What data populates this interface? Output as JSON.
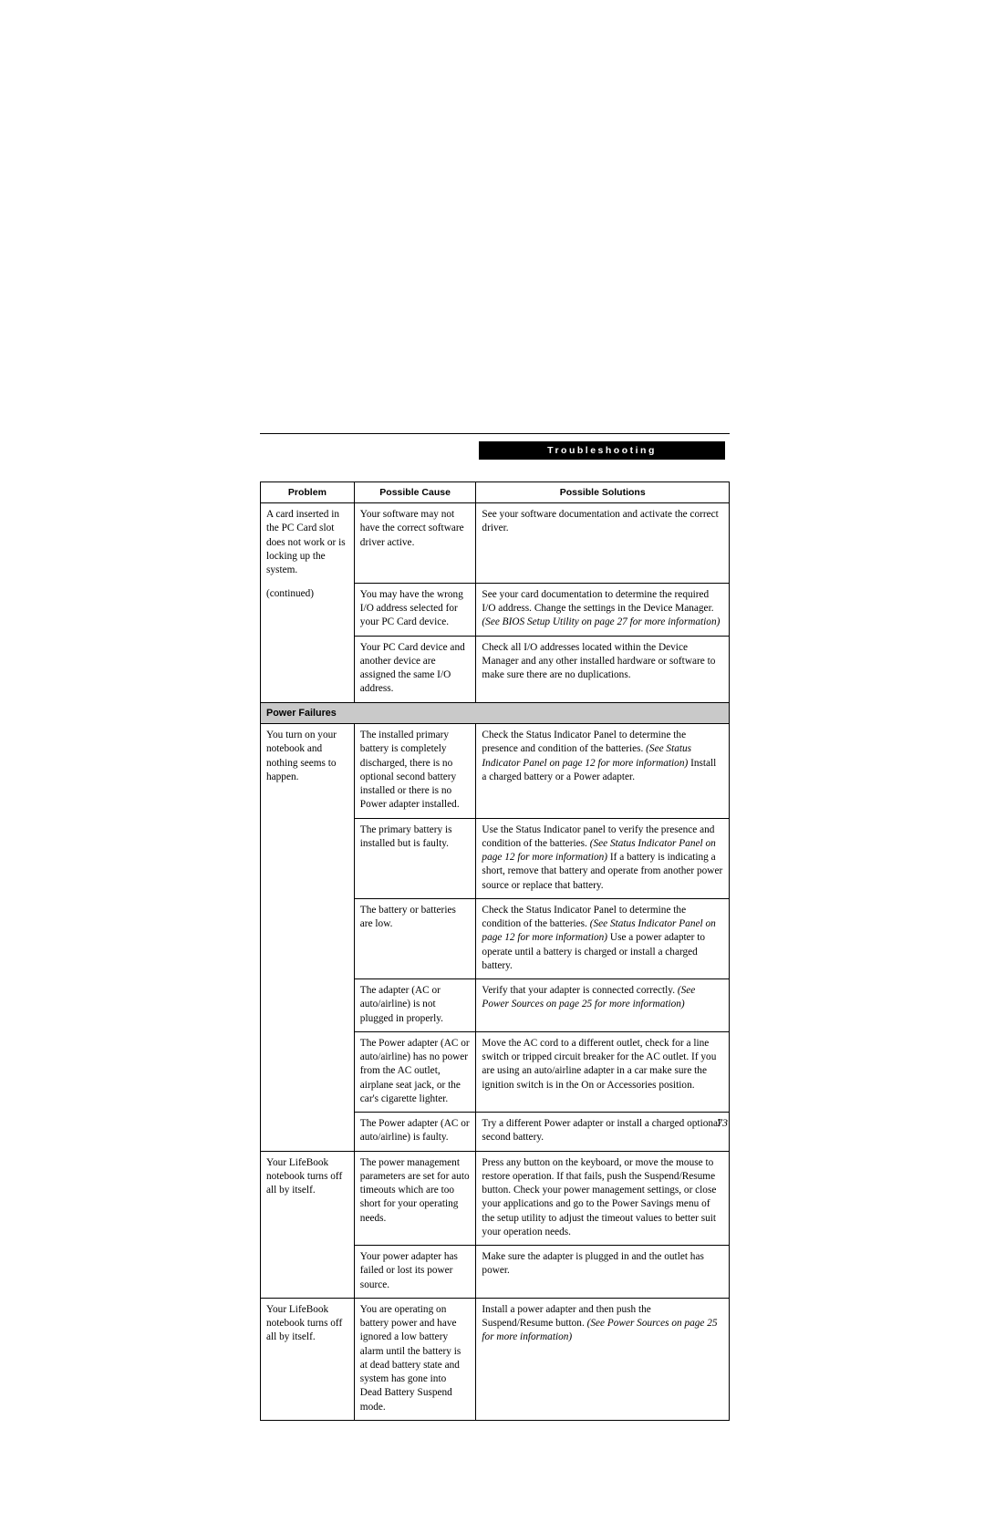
{
  "section_title": "Troubleshooting",
  "page_number": "73",
  "headers": {
    "problem": "Problem",
    "cause": "Possible Cause",
    "solution": "Possible Solutions"
  },
  "section_header_2": "Power Failures",
  "rows": {
    "r1": {
      "problem_a": "A card inserted in the PC Card slot does not work or is locking up the system.",
      "problem_b": "(continued)",
      "cause": "Your software may not have the correct software driver active.",
      "solution": "See your software documentation and activate the correct driver."
    },
    "r2": {
      "cause": "You may have the wrong I/O address selected for your PC Card device.",
      "solution_a": "See your card documentation to determine the required I/O address. Change the settings in the Device Manager. ",
      "solution_b": "(See BIOS Setup Utility on page 27 for more information)"
    },
    "r3": {
      "cause": "Your PC Card device and another device are assigned the same I/O address.",
      "solution": "Check all I/O addresses located within the Device Manager and any other installed hardware or software to make sure there are no duplications."
    },
    "r4": {
      "problem": "You turn on your notebook and nothing seems to happen.",
      "cause": "The installed primary battery is completely discharged, there is no optional second battery installed or there is no Power adapter installed.",
      "solution_a": "Check the Status Indicator Panel to determine the presence and condition of the batteries. ",
      "solution_b": "(See Status Indicator Panel on page 12 for more information) ",
      "solution_c": "Install a charged battery or a Power adapter."
    },
    "r5": {
      "cause": "The primary battery is installed but is faulty.",
      "solution_a": "Use the Status Indicator panel to verify the presence and condition of the batteries. ",
      "solution_b": "(See Status Indicator Panel on page 12 for more information) ",
      "solution_c": "If a battery is indicating a short, remove that battery and operate from another power source or replace that battery."
    },
    "r6": {
      "cause": "The battery or batteries are low.",
      "solution_a": "Check the Status Indicator Panel to determine the condition of the batteries. ",
      "solution_b": "(See Status Indicator Panel on page 12 for more information) ",
      "solution_c": "Use a power adapter to operate until a battery is charged or install a charged battery."
    },
    "r7": {
      "cause": "The adapter (AC or auto/airline) is not plugged in properly.",
      "solution_a": "Verify that your adapter is connected correctly. ",
      "solution_b": "(See Power Sources on page 25 for more information)"
    },
    "r8": {
      "cause": "The Power adapter (AC or auto/airline) has no power from the AC outlet, airplane seat jack, or the car's cigarette lighter.",
      "solution": "Move the AC cord to a different outlet, check for a line switch or tripped circuit breaker for the AC outlet. If you are using an auto/airline adapter in a car make sure the ignition switch is in the On or Accessories position."
    },
    "r9": {
      "cause": "The Power adapter (AC or auto/airline) is faulty.",
      "solution": "Try a different Power adapter or install a charged optional second battery."
    },
    "r10": {
      "problem": "Your LifeBook notebook turns off all by itself.",
      "cause": "The power management parameters are set for auto timeouts which are too short for your operating needs.",
      "solution": "Press any button on the keyboard, or move the mouse to restore operation. If that fails, push the Suspend/Resume button. Check your power management settings, or close your applications and go to the Power Savings menu of the setup utility to adjust the timeout values to better suit your operation needs."
    },
    "r11": {
      "cause": "Your power adapter has failed or lost its power source.",
      "solution": "Make sure the adapter is plugged in and the outlet has power."
    },
    "r12": {
      "problem": "Your LifeBook notebook turns off all by itself.",
      "cause": "You are operating on battery power and have ignored a low battery alarm until the battery is at dead battery state and system has gone into Dead Battery Suspend mode.",
      "solution_a": "Install a power adapter and then push the Suspend/Resume button. ",
      "solution_b": "(See Power Sources on page 25 for more information)"
    }
  }
}
